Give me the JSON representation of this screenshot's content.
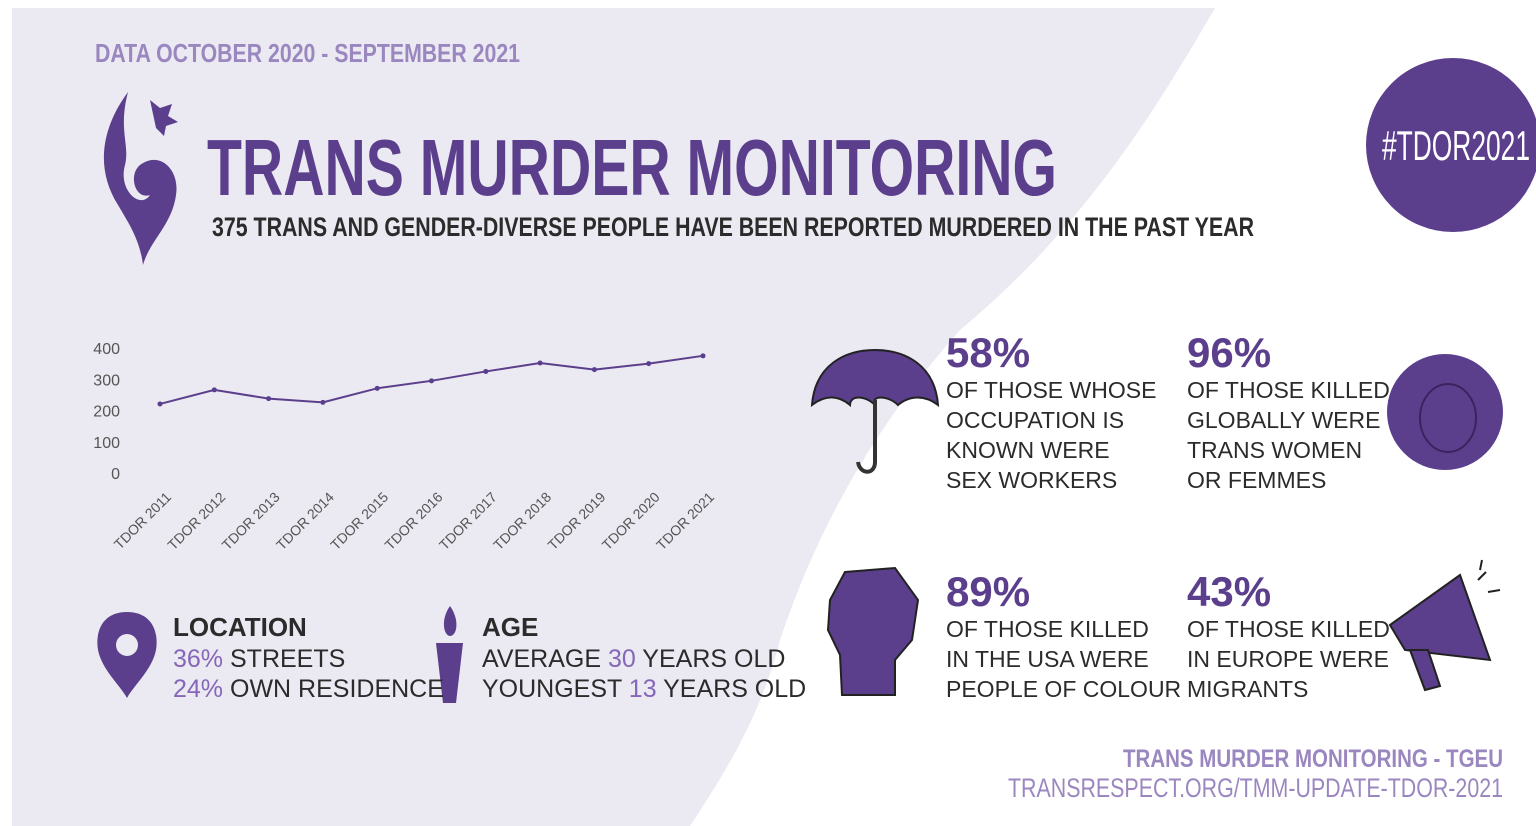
{
  "header": {
    "date_range": "DATA OCTOBER 2020 - SEPTEMBER 2021",
    "title": "TRANS MURDER MONITORING",
    "subtitle": "375 TRANS AND GENDER-DIVERSE PEOPLE HAVE BEEN REPORTED MURDERED IN THE PAST YEAR",
    "badge": "#TDOR2021"
  },
  "chart_data": {
    "type": "line",
    "categories": [
      "TDOR 2011",
      "TDOR 2012",
      "TDOR 2013",
      "TDOR 2014",
      "TDOR 2015",
      "TDOR 2016",
      "TDOR 2017",
      "TDOR 2018",
      "TDOR 2019",
      "TDOR 2020",
      "TDOR 2021"
    ],
    "values": [
      221,
      266,
      238,
      226,
      271,
      295,
      325,
      352,
      331,
      350,
      375
    ],
    "color": "#5b3f8c",
    "ylim": [
      0,
      400
    ],
    "yticks": [
      0,
      100,
      200,
      300,
      400
    ]
  },
  "location": {
    "heading": "LOCATION",
    "items": [
      {
        "value": "36%",
        "label": "STREETS"
      },
      {
        "value": "24%",
        "label": "OWN RESIDENCE"
      }
    ]
  },
  "age": {
    "heading": "AGE",
    "items": [
      {
        "prefix": "AVERAGE",
        "value": "30",
        "suffix": "YEARS OLD"
      },
      {
        "prefix": "YOUNGEST",
        "value": "13",
        "suffix": "YEARS OLD"
      }
    ]
  },
  "stats": [
    {
      "percent": "58%",
      "lines": [
        "OF THOSE WHOSE",
        "OCCUPATION IS",
        "KNOWN WERE",
        "SEX WORKERS"
      ]
    },
    {
      "percent": "96%",
      "lines": [
        "OF THOSE KILLED",
        "GLOBALLY WERE",
        "TRANS WOMEN",
        "OR FEMMES"
      ]
    },
    {
      "percent": "89%",
      "lines": [
        "OF THOSE KILLED",
        "IN THE USA WERE",
        "PEOPLE OF COLOUR"
      ]
    },
    {
      "percent": "43%",
      "lines": [
        "OF THOSE KILLED",
        "IN EUROPE WERE",
        "MIGRANTS"
      ]
    }
  ],
  "footer": {
    "source": "TRANS MURDER MONITORING - TGEU",
    "url": "TRANSRESPECT.ORG/TMM-UPDATE-TDOR-2021"
  }
}
